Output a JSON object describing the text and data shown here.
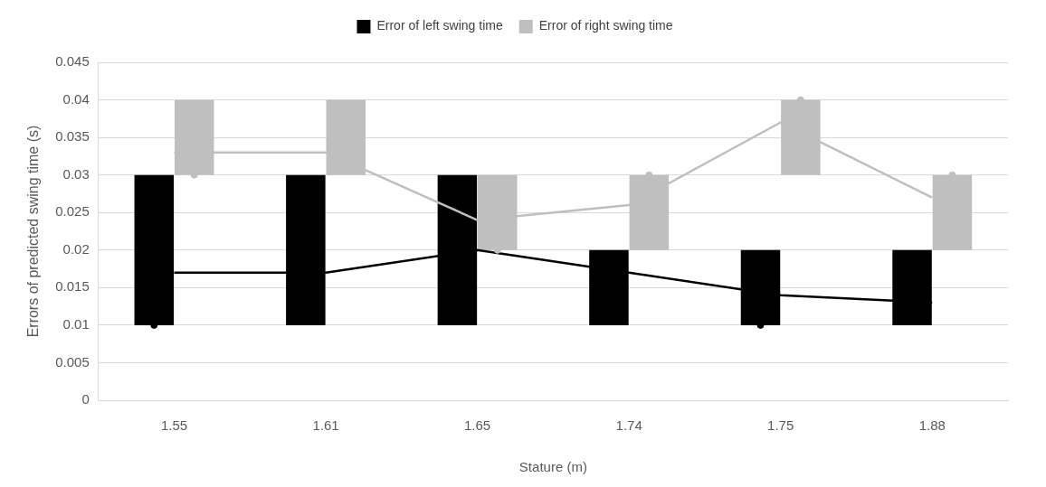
{
  "chart_data": {
    "type": "bar",
    "xlabel": "Stature (m)",
    "ylabel": "Errors of predicted swing time (s)",
    "categories": [
      "1.55",
      "1.61",
      "1.65",
      "1.74",
      "1.75",
      "1.88"
    ],
    "series": [
      {
        "name": "Error of left swing time",
        "color": "#000000",
        "base": [
          0.01,
          0.01,
          0.01,
          0.01,
          0.01,
          0.01
        ],
        "values": [
          0.02,
          0.02,
          0.02,
          0.01,
          0.01,
          0.01
        ]
      },
      {
        "name": "Error of right swing time",
        "color": "#bfbfbf",
        "base": [
          0.03,
          0.03,
          0.02,
          0.02,
          0.03,
          0.02
        ],
        "values": [
          0.01,
          0.01,
          0.01,
          0.01,
          0.01,
          0.01
        ]
      },
      {
        "type": "line",
        "color": "#000000",
        "marker": "none",
        "values": [
          0.017,
          0.017,
          0.02,
          0.017,
          0.014,
          0.013
        ]
      },
      {
        "type": "line",
        "color": "#bfbfbf",
        "marker": "none",
        "values": [
          0.033,
          0.033,
          0.024,
          0.026,
          0.037,
          0.027
        ]
      },
      {
        "type": "scatter",
        "color": "#000000",
        "marker": "circle",
        "x": [
          "1.55",
          "1.75"
        ],
        "values": [
          0.01,
          0.01
        ]
      },
      {
        "type": "scatter",
        "color": "#bfbfbf",
        "marker": "circle",
        "x": [
          "1.55",
          "1.65",
          "1.74",
          "1.75",
          "1.88"
        ],
        "values": [
          0.03,
          0.02,
          0.03,
          0.04,
          0.03
        ]
      }
    ],
    "ylim": [
      0,
      0.045
    ],
    "yticks": [
      0,
      0.005,
      0.01,
      0.015,
      0.02,
      0.025,
      0.03,
      0.035,
      0.04,
      0.045
    ],
    "grid": "y",
    "legend": "top",
    "line_style": "solid"
  }
}
